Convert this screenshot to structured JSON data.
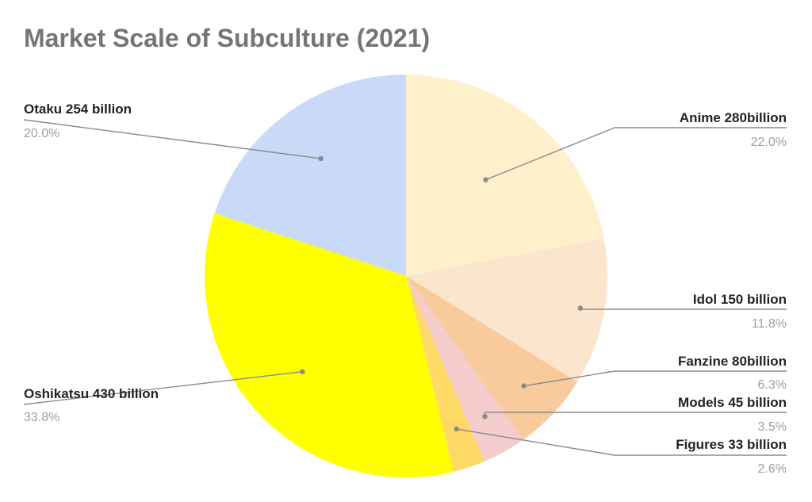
{
  "chart_data": {
    "type": "pie",
    "title": "Market Scale of Subculture (2021)",
    "slices": [
      {
        "label": "Anime 280billion",
        "value": 280,
        "percent": "22.0%",
        "color": "#fff0cc"
      },
      {
        "label": "Idol 150 billion",
        "value": 150,
        "percent": "11.8%",
        "color": "#fce5cd"
      },
      {
        "label": "Fanzine 80billion",
        "value": 80,
        "percent": "6.3%",
        "color": "#f9cb9c"
      },
      {
        "label": "Models 45 billion",
        "value": 45,
        "percent": "3.5%",
        "color": "#f4cccc"
      },
      {
        "label": "Figures 33 billion",
        "value": 33,
        "percent": "2.6%",
        "color": "#ffd966"
      },
      {
        "label": "Oshikatsu 430 billion",
        "value": 430,
        "percent": "33.8%",
        "color": "#ffff00"
      },
      {
        "label": "Otaku 254 billion",
        "value": 254,
        "percent": "20.0%",
        "color": "#c9daf8"
      }
    ],
    "start_angle": "top",
    "direction": "clockwise",
    "label_style": "outside with leader lines"
  }
}
